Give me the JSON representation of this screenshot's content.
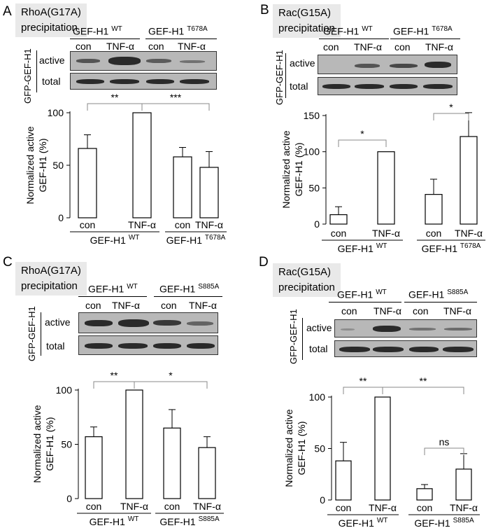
{
  "panels": [
    {
      "letter": "A",
      "title": "RhoA(G17A) precipitation",
      "blot": {
        "vertical_label": "GFP-GEF-H1",
        "groups": [
          {
            "name": "GEF-H1",
            "sup": "WT"
          },
          {
            "name": "GEF-H1",
            "sup": "T678A"
          }
        ],
        "lanes": [
          "con",
          "TNF-α",
          "con",
          "TNF-α"
        ],
        "rows": [
          "active",
          "total"
        ]
      },
      "bars": {
        "ylabel": "Normalized active GEF-H1 (%)",
        "ticks": [
          0,
          50,
          100
        ],
        "lanes": [
          "con",
          "TNF-α",
          "con",
          "TNF-α"
        ],
        "groups": [
          {
            "name": "GEF-H1",
            "sup": "WT"
          },
          {
            "name": "GEF-H1",
            "sup": "T678A"
          }
        ],
        "significance": [
          "**",
          "***"
        ]
      }
    },
    {
      "letter": "B",
      "title": "Rac(G15A) precipitation",
      "blot": {
        "vertical_label": "GFP-GEF-H1",
        "groups": [
          {
            "name": "GEF-H1",
            "sup": "WT"
          },
          {
            "name": "GEF-H1",
            "sup": "T678A"
          }
        ],
        "lanes": [
          "con",
          "TNF-α",
          "con",
          "TNF-α"
        ],
        "rows": [
          "active",
          "total"
        ]
      },
      "bars": {
        "ylabel": "Normalized active GEF-H1 (%)",
        "ticks": [
          0,
          50,
          100,
          150
        ],
        "lanes": [
          "con",
          "TNF-α",
          "con",
          "TNF-α"
        ],
        "groups": [
          {
            "name": "GEF-H1",
            "sup": "WT"
          },
          {
            "name": "GEF-H1",
            "sup": "T678A"
          }
        ],
        "significance": [
          "*",
          "*"
        ]
      }
    },
    {
      "letter": "C",
      "title": "RhoA(G17A) precipitation",
      "blot": {
        "vertical_label": "GFP-GEF-H1",
        "groups": [
          {
            "name": "GEF-H1",
            "sup": "WT"
          },
          {
            "name": "GEF-H1",
            "sup": "S885A"
          }
        ],
        "lanes": [
          "con",
          "TNF-α",
          "con",
          "TNF-α"
        ],
        "rows": [
          "active",
          "total"
        ]
      },
      "bars": {
        "ylabel": "Normalized active GEF-H1 (%)",
        "ticks": [
          0,
          50,
          100
        ],
        "lanes": [
          "con",
          "TNF-α",
          "con",
          "TNF-α"
        ],
        "groups": [
          {
            "name": "GEF-H1",
            "sup": "WT"
          },
          {
            "name": "GEF-H1",
            "sup": "S885A"
          }
        ],
        "significance": [
          "**",
          "*"
        ]
      }
    },
    {
      "letter": "D",
      "title": "Rac(G15A) precipitation",
      "blot": {
        "vertical_label": "GFP-GEF-H1",
        "groups": [
          {
            "name": "GEF-H1",
            "sup": "WT"
          },
          {
            "name": "GEF-H1",
            "sup": "S885A"
          }
        ],
        "lanes": [
          "con",
          "TNF-α",
          "con",
          "TNF-α"
        ],
        "rows": [
          "active",
          "total"
        ]
      },
      "bars": {
        "ylabel": "Normalized active GEF-H1 (%)",
        "ticks": [
          0,
          50,
          100
        ],
        "lanes": [
          "con",
          "TNF-α",
          "con",
          "TNF-α"
        ],
        "groups": [
          {
            "name": "GEF-H1",
            "sup": "WT"
          },
          {
            "name": "GEF-H1",
            "sup": "S885A"
          }
        ],
        "significance": [
          "**",
          "**",
          "ns"
        ]
      }
    }
  ],
  "chart_data": [
    {
      "type": "bar",
      "title": "RhoA(G17A) precipitation",
      "categories": [
        "con",
        "TNF-α",
        "con",
        "TNF-α"
      ],
      "groups": [
        "GEF-H1 WT",
        "GEF-H1 T678A"
      ],
      "values": [
        66,
        100,
        58,
        48
      ],
      "errors": [
        13,
        0,
        9,
        15
      ],
      "ylabel": "Normalized active GEF-H1 (%)",
      "ylim": [
        0,
        100
      ],
      "significance": [
        {
          "pair": [
            1,
            2
          ],
          "label": "**"
        },
        {
          "pair": [
            2,
            4
          ],
          "label": "***"
        }
      ]
    },
    {
      "type": "bar",
      "title": "Rac(G15A) precipitation",
      "categories": [
        "con",
        "TNF-α",
        "con",
        "TNF-α"
      ],
      "groups": [
        "GEF-H1 WT",
        "GEF-H1 T678A"
      ],
      "values": [
        13,
        100,
        41,
        121
      ],
      "errors": [
        11,
        0,
        21,
        33
      ],
      "ylabel": "Normalized active GEF-H1 (%)",
      "ylim": [
        0,
        150
      ],
      "significance": [
        {
          "pair": [
            1,
            2
          ],
          "label": "*"
        },
        {
          "pair": [
            3,
            4
          ],
          "label": "*"
        }
      ]
    },
    {
      "type": "bar",
      "title": "RhoA(G17A) precipitation",
      "categories": [
        "con",
        "TNF-α",
        "con",
        "TNF-α"
      ],
      "groups": [
        "GEF-H1 WT",
        "GEF-H1 S885A"
      ],
      "values": [
        57,
        100,
        65,
        47
      ],
      "errors": [
        9,
        0,
        17,
        10
      ],
      "ylabel": "Normalized active GEF-H1 (%)",
      "ylim": [
        0,
        100
      ],
      "significance": [
        {
          "pair": [
            1,
            2
          ],
          "label": "**"
        },
        {
          "pair": [
            2,
            4
          ],
          "label": "*"
        }
      ]
    },
    {
      "type": "bar",
      "title": "Rac(G15A) precipitation",
      "categories": [
        "con",
        "TNF-α",
        "con",
        "TNF-α"
      ],
      "groups": [
        "GEF-H1 WT",
        "GEF-H1 S885A"
      ],
      "values": [
        38,
        100,
        11,
        30
      ],
      "errors": [
        18,
        0,
        4,
        15
      ],
      "ylabel": "Normalized active GEF-H1 (%)",
      "ylim": [
        0,
        100
      ],
      "significance": [
        {
          "pair": [
            1,
            2
          ],
          "label": "**"
        },
        {
          "pair": [
            2,
            4
          ],
          "label": "**"
        },
        {
          "pair": [
            3,
            4
          ],
          "label": "ns"
        }
      ]
    }
  ]
}
